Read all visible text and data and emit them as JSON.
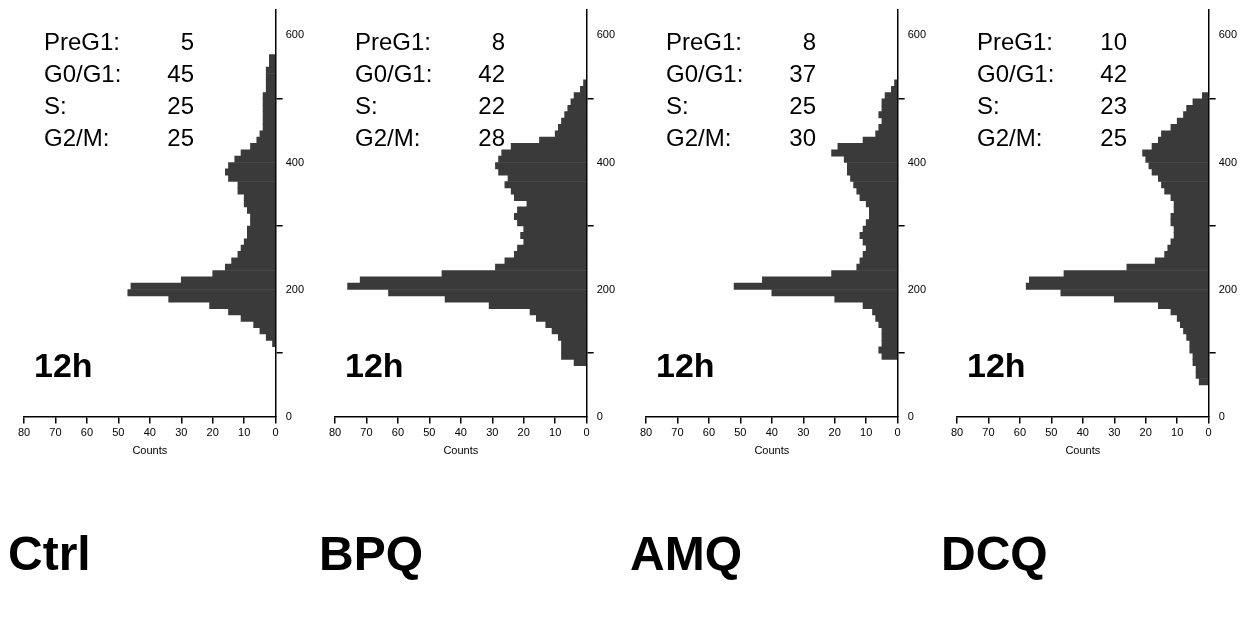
{
  "chart_data": [
    {
      "type": "histogram",
      "orientation": "horizontal",
      "title": "Ctrl",
      "xlabel": "Counts",
      "color": "#3a3a3a",
      "grid": false,
      "bins": [
        110,
        120,
        130,
        140,
        150,
        160,
        170,
        180,
        190,
        200,
        210,
        220,
        230,
        240,
        250,
        260,
        270,
        280,
        290,
        300,
        310,
        320,
        330,
        340,
        350,
        360,
        370,
        380,
        390,
        400,
        410,
        420,
        430,
        440,
        450,
        460,
        470,
        480,
        490,
        500,
        510,
        520,
        530,
        540,
        550,
        560,
        570
      ],
      "values": [
        1,
        3,
        5,
        7,
        11,
        15,
        21,
        34,
        47,
        46,
        30,
        20,
        16,
        14,
        12,
        11,
        10,
        9,
        9,
        8,
        8,
        9,
        10,
        10,
        12,
        12,
        15,
        16,
        15,
        13,
        11,
        8,
        6,
        5,
        4,
        4,
        4,
        4,
        4,
        4,
        3,
        3,
        3,
        3,
        2,
        2
      ],
      "ylim": [
        0,
        640
      ],
      "yticks": [
        0,
        200,
        400,
        600
      ],
      "xlim": [
        80,
        0
      ],
      "xticks": [
        0,
        10,
        20,
        30,
        40,
        50,
        60,
        70,
        80
      ],
      "annotations": [
        "12h",
        "PreG1: 5",
        "G0/G1: 45",
        "S: 25",
        "G2/M: 25"
      ]
    },
    {
      "type": "histogram",
      "orientation": "horizontal",
      "title": "BPQ",
      "xlabel": "Counts",
      "color": "#3a3a3a",
      "grid": false,
      "bins": [
        80,
        90,
        100,
        110,
        120,
        130,
        140,
        150,
        160,
        170,
        180,
        190,
        200,
        210,
        220,
        230,
        240,
        250,
        260,
        270,
        280,
        290,
        300,
        310,
        320,
        330,
        340,
        350,
        360,
        370,
        380,
        390,
        400,
        410,
        420,
        430,
        440,
        450,
        460,
        470,
        480,
        490,
        500,
        510,
        520,
        530
      ],
      "values": [
        4,
        8,
        8,
        8,
        9,
        11,
        13,
        16,
        18,
        31,
        45,
        63,
        76,
        72,
        46,
        29,
        26,
        23,
        22,
        20,
        21,
        20,
        22,
        23,
        22,
        19,
        23,
        24,
        26,
        25,
        28,
        29,
        28,
        27,
        24,
        15,
        10,
        9,
        8,
        7,
        6,
        5,
        4,
        2,
        1
      ],
      "ylim": [
        0,
        640
      ],
      "yticks": [
        0,
        200,
        400,
        600
      ],
      "xlim": [
        80,
        0
      ],
      "xticks": [
        0,
        10,
        20,
        30,
        40,
        50,
        60,
        70,
        80
      ],
      "annotations": [
        "12h",
        "PreG1: 8",
        "G0/G1: 42",
        "S: 22",
        "G2/M: 28"
      ]
    },
    {
      "type": "histogram",
      "orientation": "horizontal",
      "title": "AMQ",
      "xlabel": "Counts",
      "color": "#3a3a3a",
      "grid": false,
      "bins": [
        90,
        100,
        110,
        120,
        130,
        140,
        150,
        160,
        170,
        180,
        190,
        200,
        210,
        220,
        230,
        240,
        250,
        260,
        270,
        280,
        290,
        300,
        310,
        320,
        330,
        340,
        350,
        360,
        370,
        380,
        390,
        400,
        410,
        420,
        430,
        440,
        450,
        460,
        470,
        480,
        490,
        500,
        510,
        520,
        530
      ],
      "values": [
        5,
        6,
        5,
        5,
        5,
        6,
        7,
        8,
        11,
        20,
        40,
        52,
        43,
        21,
        13,
        12,
        11,
        10,
        11,
        12,
        11,
        10,
        9,
        9,
        10,
        12,
        13,
        14,
        15,
        16,
        16,
        17,
        21,
        19,
        11,
        7,
        6,
        5,
        6,
        5,
        5,
        4,
        2,
        1
      ],
      "ylim": [
        0,
        640
      ],
      "yticks": [
        0,
        200,
        400,
        600
      ],
      "xlim": [
        80,
        0
      ],
      "xticks": [
        0,
        10,
        20,
        30,
        40,
        50,
        60,
        70,
        80
      ],
      "annotations": [
        "12h",
        "PreG1: 8",
        "G0/G1: 37",
        "S: 25",
        "G2/M: 30"
      ]
    },
    {
      "type": "histogram",
      "orientation": "horizontal",
      "title": "DCQ",
      "xlabel": "Counts",
      "color": "#3a3a3a",
      "grid": false,
      "bins": [
        50,
        60,
        70,
        80,
        90,
        100,
        110,
        120,
        130,
        140,
        150,
        160,
        170,
        180,
        190,
        200,
        210,
        220,
        230,
        240,
        250,
        260,
        270,
        280,
        290,
        300,
        310,
        320,
        330,
        340,
        350,
        360,
        370,
        380,
        390,
        400,
        410,
        420,
        430,
        440,
        450,
        460,
        470,
        480,
        490,
        500,
        510
      ],
      "values": [
        3,
        4,
        4,
        5,
        5,
        6,
        6,
        7,
        8,
        9,
        10,
        12,
        16,
        30,
        47,
        58,
        57,
        46,
        26,
        17,
        14,
        13,
        12,
        11,
        11,
        12,
        12,
        11,
        11,
        12,
        14,
        15,
        16,
        18,
        19,
        20,
        21,
        18,
        16,
        15,
        12,
        10,
        8,
        7,
        5,
        2
      ],
      "ylim": [
        0,
        640
      ],
      "yticks": [
        0,
        200,
        400,
        600
      ],
      "xlim": [
        80,
        0
      ],
      "xticks": [
        0,
        10,
        20,
        30,
        40,
        50,
        60,
        70,
        80
      ],
      "annotations": [
        "12h",
        "PreG1: 10",
        "G0/G1: 42",
        "S: 23",
        "G2/M: 25"
      ]
    }
  ]
}
